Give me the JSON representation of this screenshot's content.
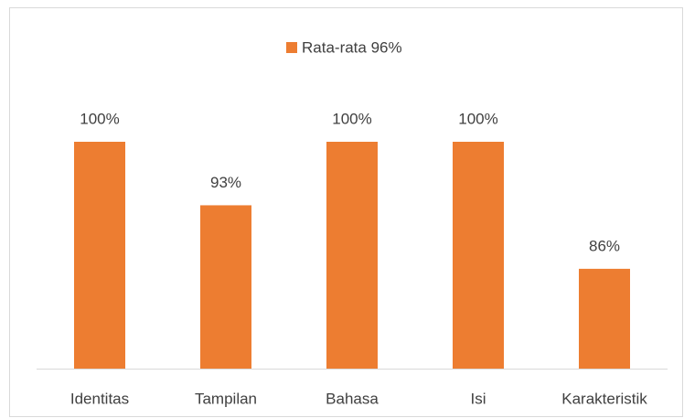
{
  "chart_data": {
    "type": "bar",
    "categories": [
      "Identitas",
      "Tampilan",
      "Bahasa",
      "Isi",
      "Karakteristik"
    ],
    "series": [
      {
        "name": "Rata-rata 96%",
        "color": "#ed7d31",
        "values": [
          100,
          93,
          100,
          100,
          86
        ],
        "value_labels": [
          "100%",
          "93%",
          "100%",
          "100%",
          "86%"
        ]
      }
    ],
    "ylim": [
      75,
      100
    ],
    "legend": "top"
  }
}
